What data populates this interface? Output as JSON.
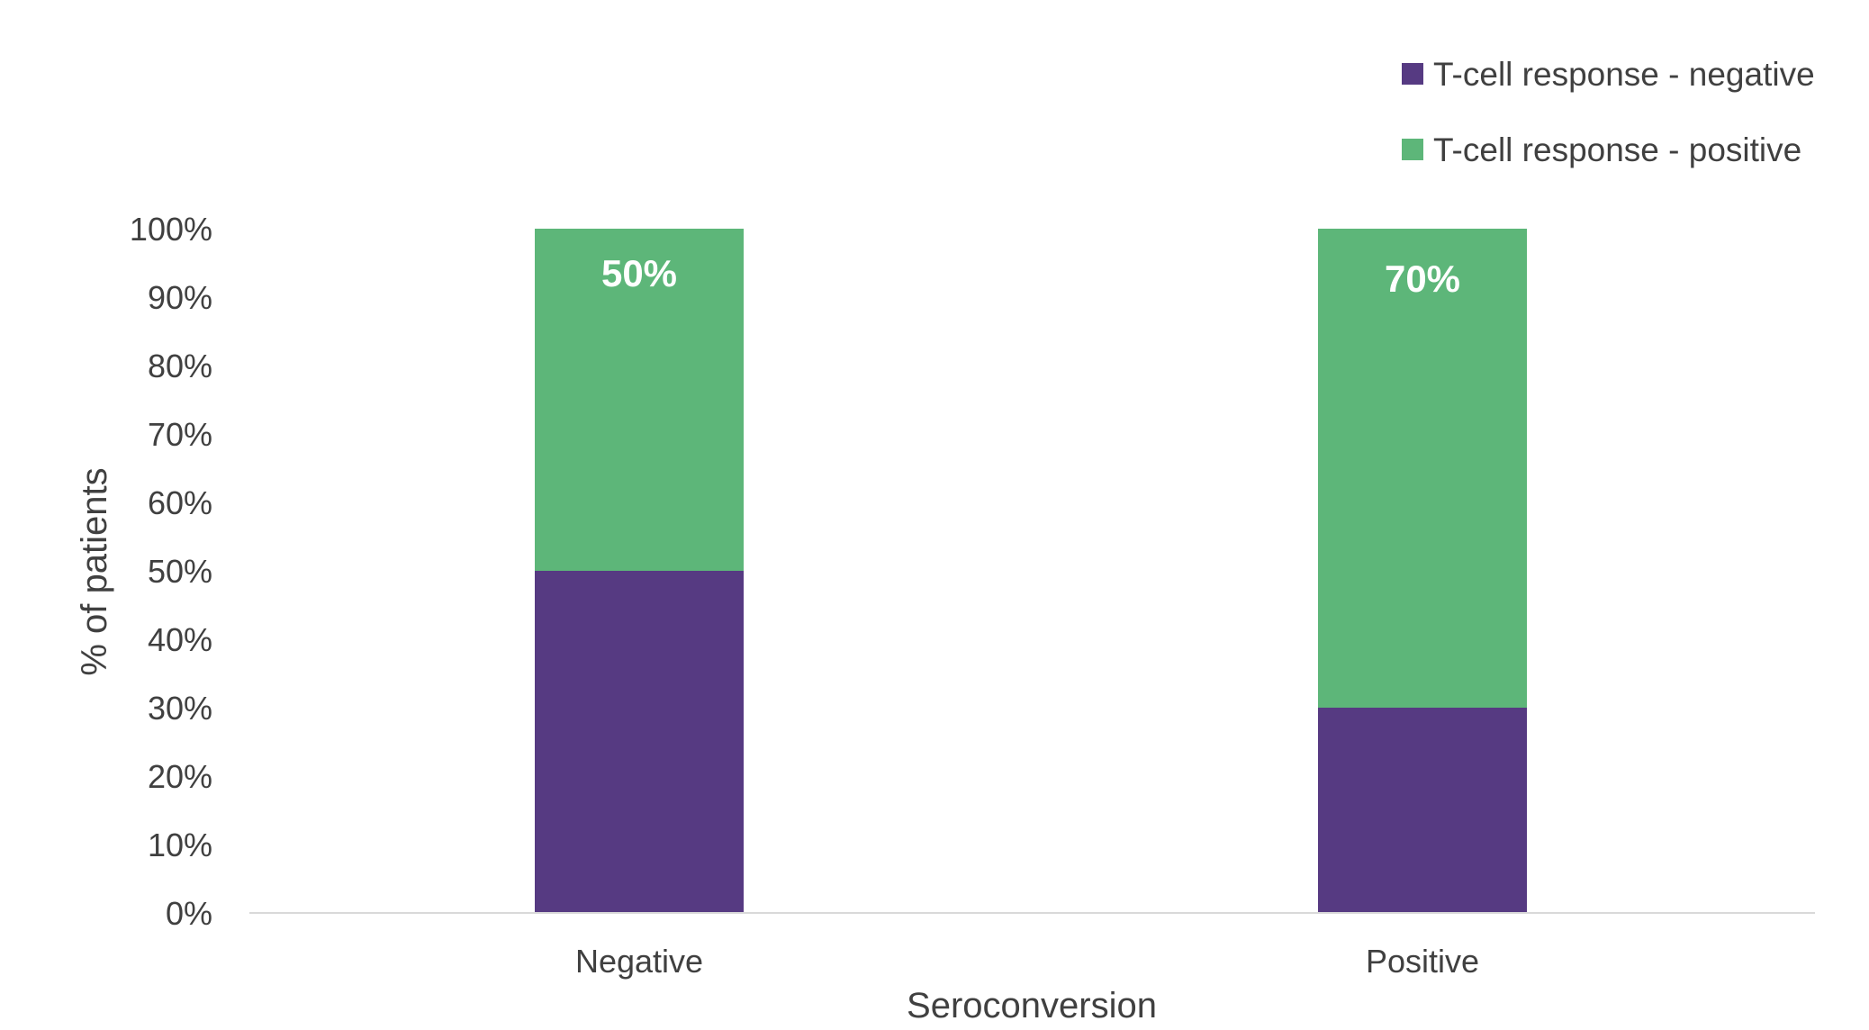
{
  "chart_data": {
    "type": "bar",
    "stacked": true,
    "percent_stacked": true,
    "title": "",
    "xlabel": "Seroconversion",
    "ylabel": "% of patients",
    "ylim": [
      0,
      100
    ],
    "y_tick_format": "percent",
    "y_ticks": [
      "0%",
      "10%",
      "20%",
      "30%",
      "40%",
      "50%",
      "60%",
      "70%",
      "80%",
      "90%",
      "100%"
    ],
    "categories": [
      "Negative",
      "Positive"
    ],
    "series": [
      {
        "name": "T-cell response - negative",
        "values": [
          50,
          30
        ],
        "color": "#563a82"
      },
      {
        "name": "T-cell response - positive",
        "values": [
          50,
          70
        ],
        "color": "#5db679",
        "data_labels": [
          "50%",
          "70%"
        ]
      }
    ],
    "legend_position": "top-right",
    "grid": false,
    "axis_color": "#d9d9d9",
    "text_color": "#404040"
  }
}
